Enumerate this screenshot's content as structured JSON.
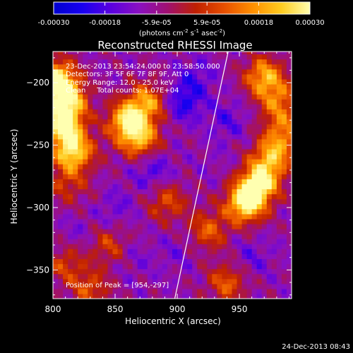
{
  "chart_data": {
    "type": "heatmap",
    "title": "Reconstructed RHESSI Image",
    "xlabel": "Heliocentric X (arcsec)",
    "ylabel": "Heliocentric Y (arcsec)",
    "xlim": [
      800,
      992
    ],
    "ylim": [
      -373,
      -175
    ],
    "x_ticks": [
      800,
      850,
      900,
      950
    ],
    "y_ticks": [
      -200,
      -250,
      -300,
      -350
    ],
    "colorbar": {
      "vmin": -0.0003,
      "vmax": 0.0003,
      "tick_values": [
        -0.0003,
        -0.00018,
        -5.9e-05,
        5.9e-05,
        0.00018,
        0.0003
      ],
      "tick_labels": [
        "-0.00030",
        "-0.00018",
        "-5.9e-05",
        "5.9e-05",
        "0.00018",
        "0.00030"
      ],
      "label": "(photons cm",
      "label_exp1": "-2",
      "label_mid": " s",
      "label_exp2": "-1",
      "label_mid2": " asec",
      "label_exp3": "-2",
      "label_end": ")",
      "colors": [
        "#0000d0",
        "#1800f0",
        "#5a00e0",
        "#8a10c0",
        "#a01070",
        "#c02000",
        "#e85000",
        "#ff9000",
        "#ffcc20",
        "#ffffb0"
      ]
    },
    "annotations": [
      "23-Dec-2013 23:54:24.000 to 23:58:50.000",
      "Detectors: 3F 5F 6F 7F 8F 9F, Att 0",
      "Energy Range: 12.0 - 25.0 keV",
      "Clean     Total counts: 1.07E+04"
    ],
    "peak_label": "Position of Peak = [954,-297]",
    "peak": [
      954,
      -297
    ],
    "limb_line": [
      [
        898,
        -373
      ],
      [
        941,
        -175
      ]
    ],
    "blobs": [
      {
        "x": 802,
        "y": -197,
        "v": 0.0003
      },
      {
        "x": 808,
        "y": -233,
        "v": 0.00028
      },
      {
        "x": 816,
        "y": -255,
        "v": 0.00026
      },
      {
        "x": 812,
        "y": -213,
        "v": 0.00022
      },
      {
        "x": 860,
        "y": -230,
        "v": 0.00024
      },
      {
        "x": 870,
        "y": -245,
        "v": 0.00018
      },
      {
        "x": 876,
        "y": -215,
        "v": 0.00016
      },
      {
        "x": 955,
        "y": -296,
        "v": 0.0003
      },
      {
        "x": 966,
        "y": -280,
        "v": 0.00026
      },
      {
        "x": 976,
        "y": -260,
        "v": 0.00018
      },
      {
        "x": 985,
        "y": -240,
        "v": 0.00012
      },
      {
        "x": 970,
        "y": -195,
        "v": 0.0002
      },
      {
        "x": 982,
        "y": -215,
        "v": 0.00012
      },
      {
        "x": 925,
        "y": -318,
        "v": 0.0001
      },
      {
        "x": 940,
        "y": -360,
        "v": 0.0001
      },
      {
        "x": 892,
        "y": -295,
        "v": 8e-05
      },
      {
        "x": 845,
        "y": -330,
        "v": 6e-05
      },
      {
        "x": 810,
        "y": -345,
        "v": 6e-05
      },
      {
        "x": 830,
        "y": -365,
        "v": 8e-05
      },
      {
        "x": 825,
        "y": -290,
        "v": -5e-05
      },
      {
        "x": 885,
        "y": -360,
        "v": -8e-05
      },
      {
        "x": 820,
        "y": -320,
        "v": -0.00012
      },
      {
        "x": 850,
        "y": -300,
        "v": -0.00014
      },
      {
        "x": 905,
        "y": -215,
        "v": -0.00022
      },
      {
        "x": 915,
        "y": -195,
        "v": -0.00016
      },
      {
        "x": 880,
        "y": -270,
        "v": -0.00018
      },
      {
        "x": 900,
        "y": -335,
        "v": -0.00012
      },
      {
        "x": 940,
        "y": -230,
        "v": -0.00016
      },
      {
        "x": 960,
        "y": -340,
        "v": -0.00014
      },
      {
        "x": 865,
        "y": -340,
        "v": -0.00012
      },
      {
        "x": 845,
        "y": -200,
        "v": -8e-05
      },
      {
        "x": 930,
        "y": -265,
        "v": -0.0001
      },
      {
        "x": 985,
        "y": -335,
        "v": -8e-05
      },
      {
        "x": 810,
        "y": -280,
        "v": 4e-05
      },
      {
        "x": 838,
        "y": -252,
        "v": -6e-05
      }
    ]
  },
  "footer": {
    "timestamp": "24-Dec-2013 08:43"
  }
}
